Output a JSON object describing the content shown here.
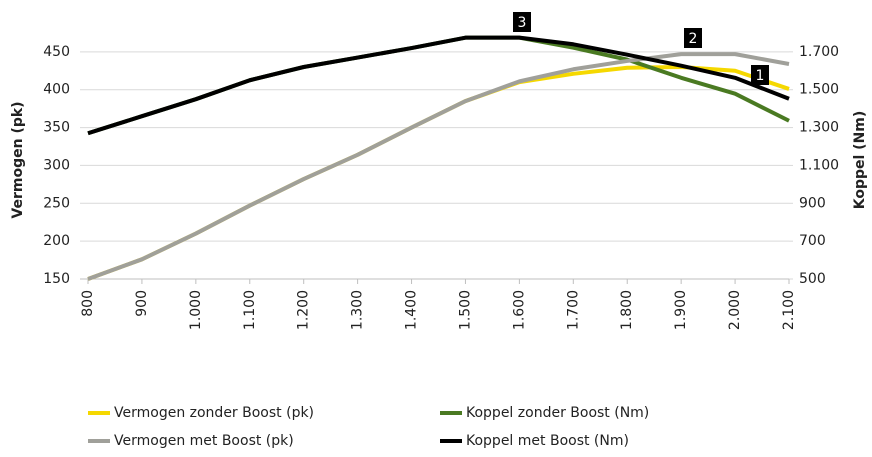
{
  "chart_data": {
    "type": "line",
    "y_label": "Vermogen (pk)",
    "y2_label": "Koppel (Nm)",
    "categories": [
      "800",
      "900",
      "1.000",
      "1.100",
      "1.200",
      "1.300",
      "1.400",
      "1.500",
      "1.600",
      "1.700",
      "1.800",
      "1.900",
      "2.000",
      "2.100"
    ],
    "series": [
      {
        "name": "Vermogen zonder Boost (pk)",
        "color": "#f5d800",
        "values": [
          150,
          176,
          210,
          247,
          282,
          314,
          350,
          385,
          410,
          421,
          429,
          430,
          425,
          401
        ]
      },
      {
        "name": "Koppel zonder Boost (Nm)",
        "color": "#4a7a22",
        "axis": "y2",
        "values": [
          1270,
          1360,
          1450,
          1550,
          1620,
          1670,
          1720,
          1775,
          1775,
          1722,
          1659,
          1563,
          1479,
          1336
        ]
      },
      {
        "name": "Vermogen met Boost (pk)",
        "color": "#a0a09a",
        "values": [
          150,
          176,
          210,
          247,
          282,
          314,
          350,
          385,
          411,
          427,
          438,
          447,
          447,
          434
        ]
      },
      {
        "name": "Koppel met Boost (Nm)",
        "color": "#000000",
        "axis": "y2",
        "values": [
          1270,
          1360,
          1450,
          1550,
          1620,
          1670,
          1720,
          1775,
          1775,
          1740,
          1685,
          1627,
          1563,
          1452
        ]
      }
    ],
    "ylim": [
      150,
      500
    ],
    "yticks": [
      150,
      200,
      250,
      300,
      350,
      400,
      450
    ],
    "y2lim": [
      500,
      1900
    ],
    "y2ticks": [
      500,
      700,
      900,
      {
        "value": 1100,
        "label": "1.100"
      },
      {
        "value": 1300,
        "label": "1.300"
      },
      {
        "value": 1500,
        "label": "1.500"
      },
      {
        "value": 1700,
        "label": "1.700"
      }
    ],
    "grid": true,
    "annotations": [
      "3",
      "2",
      "1"
    ]
  }
}
